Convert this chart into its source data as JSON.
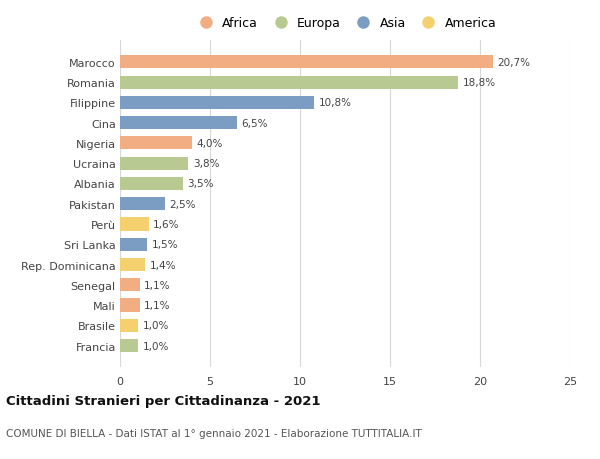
{
  "countries": [
    "Marocco",
    "Romania",
    "Filippine",
    "Cina",
    "Nigeria",
    "Ucraina",
    "Albania",
    "Pakistan",
    "Perù",
    "Sri Lanka",
    "Rep. Dominicana",
    "Senegal",
    "Mali",
    "Brasile",
    "Francia"
  ],
  "values": [
    20.7,
    18.8,
    10.8,
    6.5,
    4.0,
    3.8,
    3.5,
    2.5,
    1.6,
    1.5,
    1.4,
    1.1,
    1.1,
    1.0,
    1.0
  ],
  "labels": [
    "20,7%",
    "18,8%",
    "10,8%",
    "6,5%",
    "4,0%",
    "3,8%",
    "3,5%",
    "2,5%",
    "1,6%",
    "1,5%",
    "1,4%",
    "1,1%",
    "1,1%",
    "1,0%",
    "1,0%"
  ],
  "continents": [
    "Africa",
    "Europa",
    "Asia",
    "Asia",
    "Africa",
    "Europa",
    "Europa",
    "Asia",
    "America",
    "Asia",
    "America",
    "Africa",
    "Africa",
    "America",
    "Europa"
  ],
  "continent_colors": {
    "Africa": "#F2AE82",
    "Europa": "#B8CA92",
    "Asia": "#7B9DC4",
    "America": "#F5D06E"
  },
  "legend_order": [
    "Africa",
    "Europa",
    "Asia",
    "America"
  ],
  "xlim": [
    0,
    25
  ],
  "xticks": [
    0,
    5,
    10,
    15,
    20,
    25
  ],
  "title": "Cittadini Stranieri per Cittadinanza - 2021",
  "subtitle": "COMUNE DI BIELLA - Dati ISTAT al 1° gennaio 2021 - Elaborazione TUTTITALIA.IT",
  "background_color": "#ffffff",
  "bar_height": 0.65,
  "grid_color": "#d8d8d8"
}
